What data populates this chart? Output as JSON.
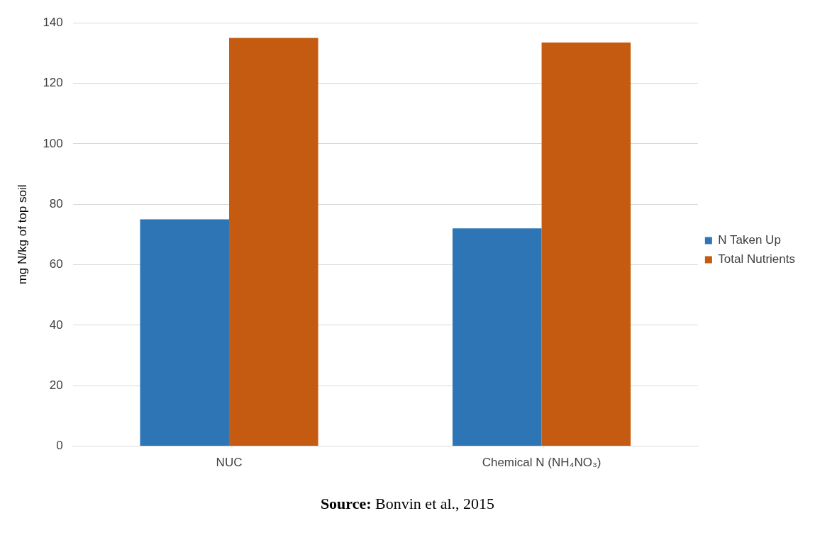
{
  "chart_data": {
    "type": "bar",
    "categories": [
      "NUC",
      "Chemical N (NH₄NO₃)"
    ],
    "series": [
      {
        "name": "N Taken Up",
        "color": "#2e75b6",
        "values": [
          75,
          72
        ]
      },
      {
        "name": "Total Nutrients",
        "color": "#c55a11",
        "values": [
          135,
          133.5
        ]
      }
    ],
    "ylabel": "mg N/kg of top soil",
    "ylim": [
      0,
      140
    ],
    "yticks": [
      0,
      20,
      40,
      60,
      80,
      100,
      120,
      140
    ],
    "grid": "y",
    "legend": "right",
    "annotations": [
      "Source: Bonvin et al., 2015"
    ]
  }
}
